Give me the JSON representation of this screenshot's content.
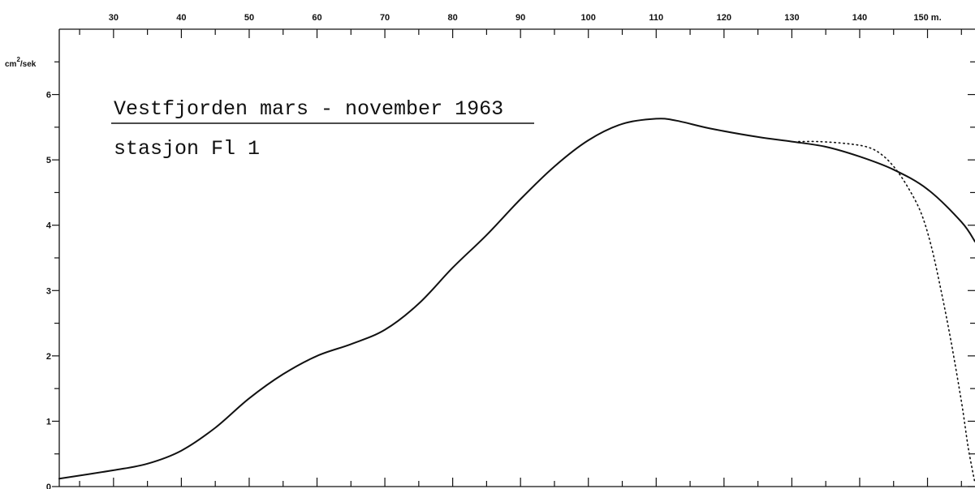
{
  "chart_data": {
    "type": "line",
    "title": "Vestfjorden mars - november 1963",
    "subtitle": "stasjon Fl 1",
    "xlabel": "m.",
    "ylabel": "cm²/sek",
    "ylabel_parts": {
      "base": "cm",
      "sup": "2",
      "rest": "/sek"
    },
    "xlim": [
      22,
      157
    ],
    "ylim": [
      0,
      7
    ],
    "x_ticks": [
      30,
      40,
      50,
      60,
      70,
      80,
      90,
      100,
      110,
      120,
      130,
      140,
      150
    ],
    "x_tick_labels": [
      "30",
      "40",
      "50",
      "60",
      "70",
      "80",
      "90",
      "100",
      "110",
      "120",
      "130",
      "140",
      "150 m."
    ],
    "y_ticks": [
      0,
      1,
      2,
      3,
      4,
      5,
      6
    ],
    "y_tick_labels": [
      "0",
      "1",
      "2",
      "3",
      "4",
      "5",
      "6"
    ],
    "grid": false,
    "series": [
      {
        "style": "solid",
        "x": [
          22,
          30,
          35,
          40,
          45,
          50,
          55,
          60,
          65,
          70,
          75,
          80,
          85,
          90,
          95,
          100,
          105,
          110,
          113,
          118,
          125,
          130,
          135,
          140,
          145,
          150,
          155,
          157
        ],
        "y": [
          0.12,
          0.25,
          0.35,
          0.55,
          0.9,
          1.35,
          1.72,
          2.0,
          2.18,
          2.4,
          2.8,
          3.35,
          3.85,
          4.4,
          4.9,
          5.3,
          5.55,
          5.63,
          5.6,
          5.48,
          5.35,
          5.28,
          5.2,
          5.05,
          4.85,
          4.55,
          4.05,
          3.75
        ]
      },
      {
        "style": "dotted",
        "x": [
          131,
          134,
          138,
          141,
          143,
          145,
          147,
          149,
          150.5,
          152,
          153.5,
          155,
          156,
          157
        ],
        "y": [
          5.28,
          5.28,
          5.25,
          5.2,
          5.1,
          4.9,
          4.6,
          4.2,
          3.7,
          3.0,
          2.2,
          1.3,
          0.6,
          0.05
        ]
      }
    ]
  }
}
